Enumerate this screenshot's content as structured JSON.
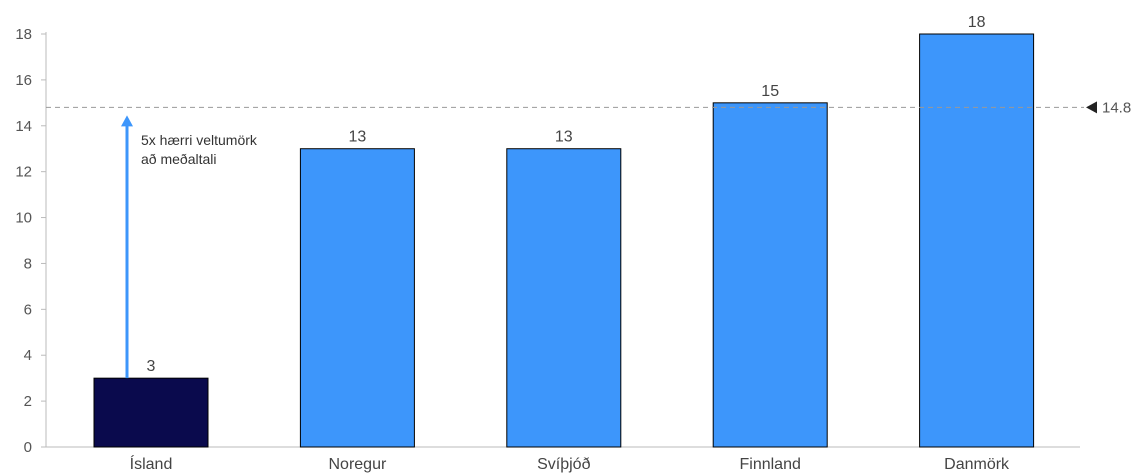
{
  "chart_data": {
    "type": "bar",
    "categories": [
      "Ísland",
      "Noregur",
      "Svíþjóð",
      "Finnland",
      "Danmörk"
    ],
    "values": [
      3,
      13,
      13,
      15,
      18
    ],
    "ylim": [
      0,
      18
    ],
    "yticks": [
      0,
      2,
      4,
      6,
      8,
      10,
      12,
      14,
      16,
      18
    ],
    "grid": false,
    "reference_line": {
      "value": 14.8,
      "label": "14.8"
    },
    "annotation": {
      "lines": [
        "5x hærri veltumörk",
        "að meðaltali"
      ]
    },
    "colors": {
      "highlight": "#0a0a4d",
      "bar": "#3d96fb",
      "arrow": "#3d96fb",
      "reference": "#999999",
      "axis": "#bbbbbb"
    }
  }
}
